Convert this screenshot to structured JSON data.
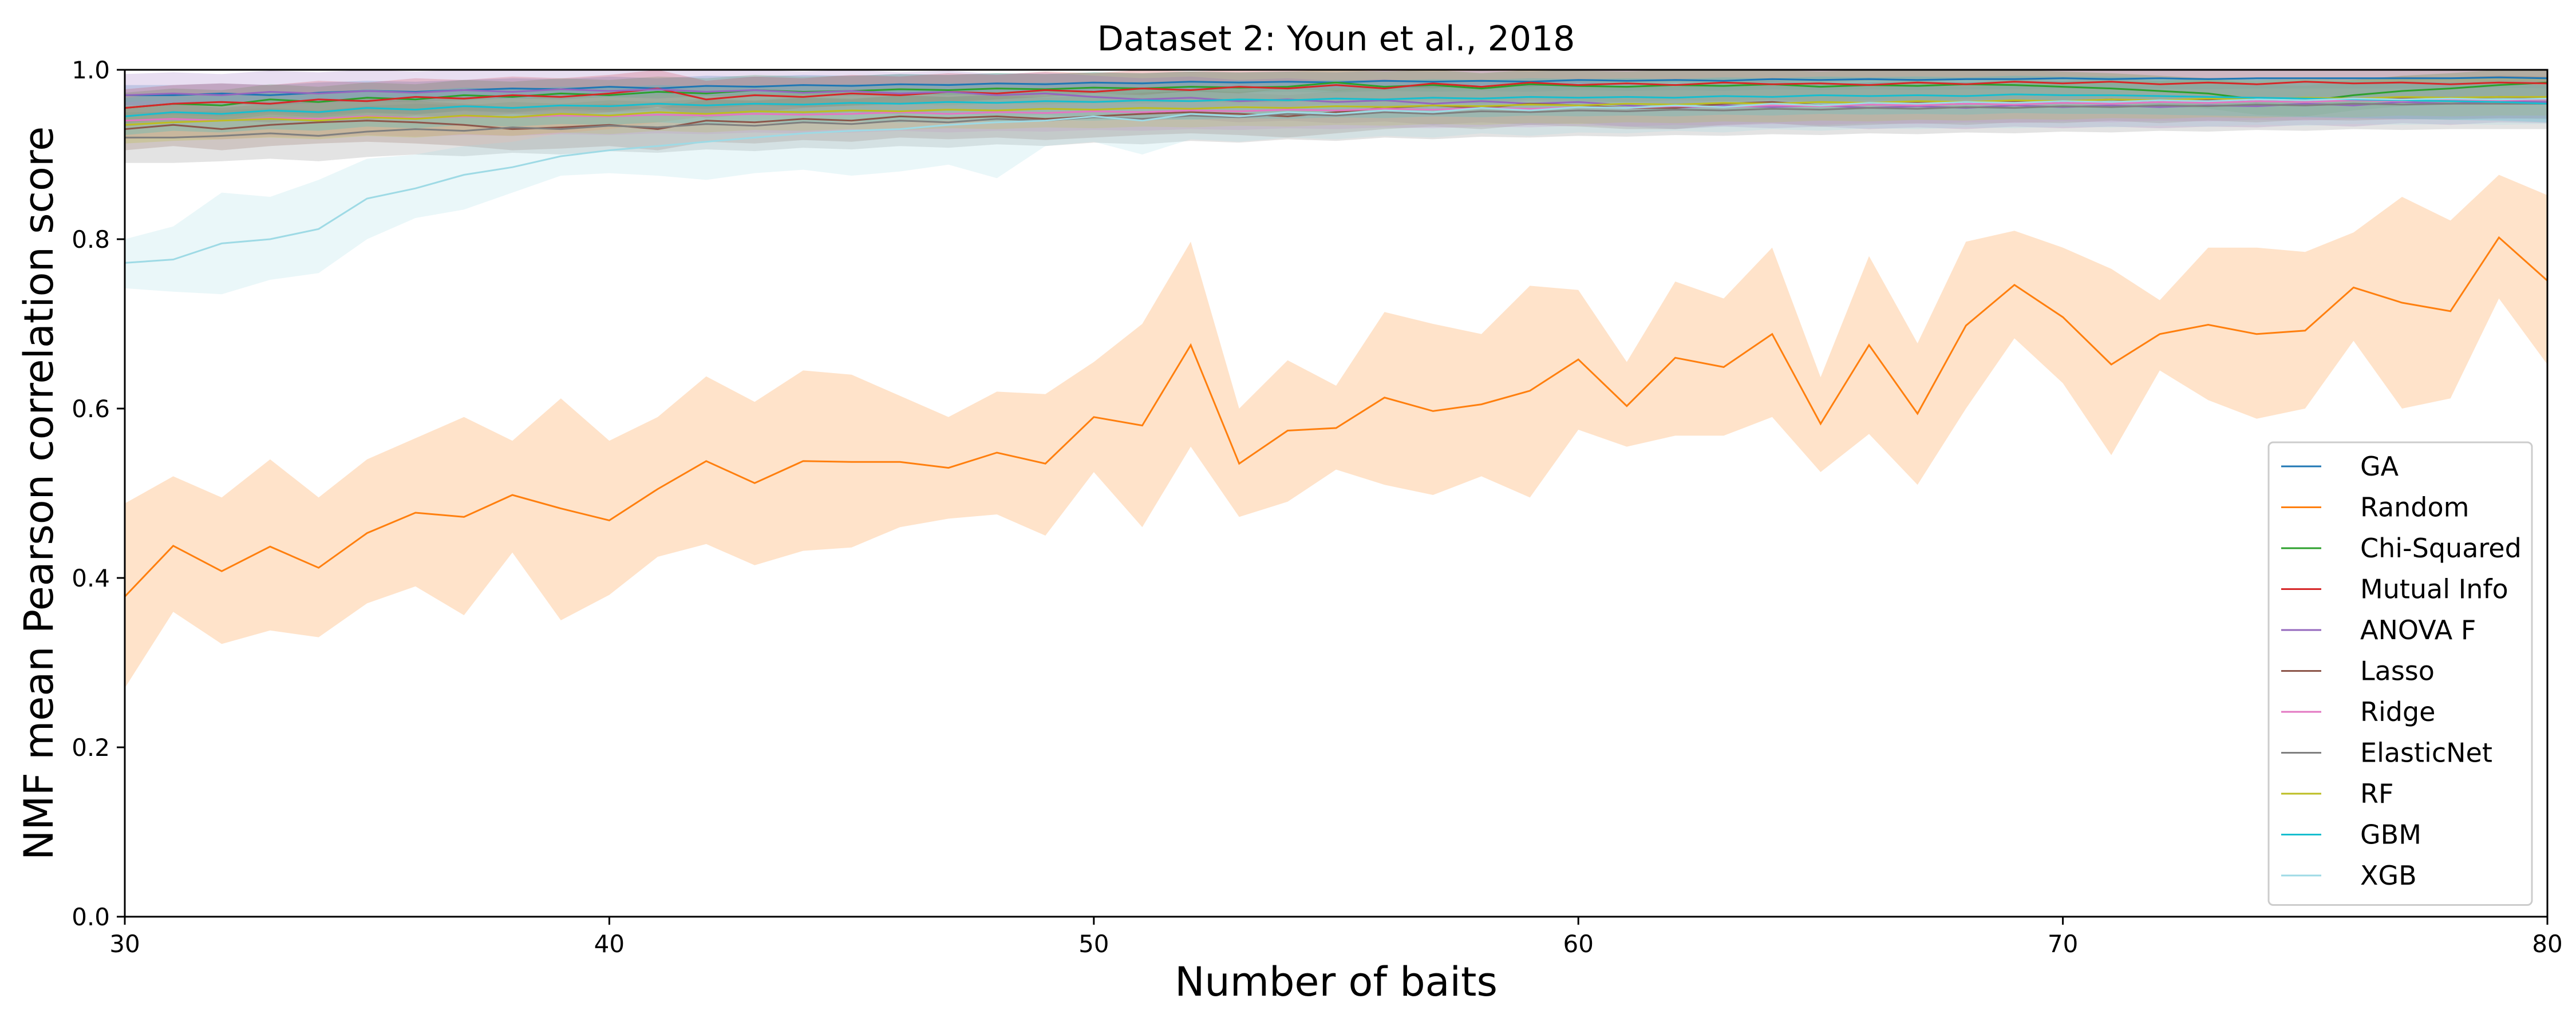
{
  "chart_data": {
    "type": "line",
    "title": "Dataset 2: Youn et al., 2018",
    "xlabel": "Number of baits",
    "ylabel": "NMF mean Pearson correlation score",
    "xlim": [
      30,
      80
    ],
    "ylim": [
      0.0,
      1.0
    ],
    "xticks": [
      "30",
      "40",
      "50",
      "60",
      "70",
      "80"
    ],
    "yticks": [
      "0.0",
      "0.2",
      "0.4",
      "0.6",
      "0.8",
      "1.0"
    ],
    "legend_position": "lower-right",
    "grid": false,
    "x": [
      30,
      31,
      32,
      33,
      34,
      35,
      36,
      37,
      38,
      39,
      40,
      41,
      42,
      43,
      44,
      45,
      46,
      47,
      48,
      49,
      50,
      51,
      52,
      53,
      54,
      55,
      56,
      57,
      58,
      59,
      60,
      61,
      62,
      63,
      64,
      65,
      66,
      67,
      68,
      69,
      70,
      71,
      72,
      73,
      74,
      75,
      76,
      77,
      78,
      79,
      80
    ],
    "series": [
      {
        "name": "GA",
        "color": "#1f77b4",
        "values": [
          0.97,
          0.97,
          0.972,
          0.97,
          0.973,
          0.975,
          0.974,
          0.976,
          0.978,
          0.977,
          0.98,
          0.978,
          0.981,
          0.98,
          0.982,
          0.981,
          0.983,
          0.982,
          0.984,
          0.983,
          0.985,
          0.984,
          0.986,
          0.985,
          0.986,
          0.985,
          0.987,
          0.986,
          0.987,
          0.986,
          0.988,
          0.987,
          0.988,
          0.987,
          0.989,
          0.988,
          0.989,
          0.988,
          0.989,
          0.989,
          0.99,
          0.989,
          0.99,
          0.989,
          0.99,
          0.99,
          0.99,
          0.99,
          0.99,
          0.991,
          0.99
        ],
        "band": 0.012
      },
      {
        "name": "Random",
        "color": "#ff7f0e",
        "values": [
          0.378,
          0.438,
          0.408,
          0.437,
          0.412,
          0.453,
          0.477,
          0.472,
          0.498,
          0.482,
          0.468,
          0.505,
          0.538,
          0.512,
          0.538,
          0.537,
          0.537,
          0.53,
          0.548,
          0.535,
          0.59,
          0.58,
          0.675,
          0.535,
          0.574,
          0.577,
          0.613,
          0.597,
          0.605,
          0.621,
          0.658,
          0.603,
          0.66,
          0.649,
          0.688,
          0.582,
          0.675,
          0.594,
          0.698,
          0.746,
          0.708,
          0.652,
          0.688,
          0.699,
          0.688,
          0.692,
          0.743,
          0.725,
          0.715,
          0.802,
          0.751
        ],
        "lower": [
          0.27,
          0.36,
          0.322,
          0.338,
          0.33,
          0.37,
          0.39,
          0.356,
          0.43,
          0.35,
          0.38,
          0.425,
          0.44,
          0.415,
          0.432,
          0.436,
          0.46,
          0.47,
          0.475,
          0.45,
          0.525,
          0.46,
          0.555,
          0.472,
          0.49,
          0.528,
          0.51,
          0.498,
          0.52,
          0.495,
          0.575,
          0.555,
          0.568,
          0.568,
          0.59,
          0.525,
          0.57,
          0.51,
          0.6,
          0.683,
          0.63,
          0.545,
          0.645,
          0.61,
          0.588,
          0.6,
          0.68,
          0.6,
          0.612,
          0.73,
          0.652
        ],
        "upper": [
          0.488,
          0.52,
          0.495,
          0.54,
          0.495,
          0.54,
          0.565,
          0.59,
          0.562,
          0.612,
          0.562,
          0.59,
          0.638,
          0.608,
          0.645,
          0.64,
          0.615,
          0.59,
          0.62,
          0.617,
          0.655,
          0.7,
          0.797,
          0.6,
          0.657,
          0.627,
          0.714,
          0.7,
          0.688,
          0.745,
          0.74,
          0.655,
          0.75,
          0.73,
          0.79,
          0.637,
          0.78,
          0.677,
          0.797,
          0.81,
          0.79,
          0.765,
          0.728,
          0.79,
          0.79,
          0.785,
          0.808,
          0.85,
          0.822,
          0.876,
          0.852
        ]
      },
      {
        "name": "Chi-Squared",
        "color": "#2ca02c",
        "values": [
          0.955,
          0.96,
          0.958,
          0.965,
          0.962,
          0.967,
          0.965,
          0.97,
          0.968,
          0.972,
          0.97,
          0.974,
          0.972,
          0.976,
          0.974,
          0.975,
          0.977,
          0.976,
          0.978,
          0.977,
          0.979,
          0.978,
          0.98,
          0.979,
          0.98,
          0.985,
          0.98,
          0.982,
          0.978,
          0.983,
          0.981,
          0.98,
          0.982,
          0.981,
          0.983,
          0.98,
          0.982,
          0.981,
          0.983,
          0.982,
          0.98,
          0.978,
          0.975,
          0.972,
          0.965,
          0.963,
          0.97,
          0.975,
          0.978,
          0.982,
          0.985
        ],
        "band": 0.018
      },
      {
        "name": "Mutual Info",
        "color": "#d62728",
        "values": [
          0.955,
          0.96,
          0.962,
          0.96,
          0.965,
          0.963,
          0.968,
          0.966,
          0.97,
          0.968,
          0.972,
          0.978,
          0.965,
          0.97,
          0.968,
          0.972,
          0.97,
          0.974,
          0.972,
          0.976,
          0.974,
          0.978,
          0.976,
          0.98,
          0.978,
          0.982,
          0.978,
          0.984,
          0.98,
          0.985,
          0.982,
          0.984,
          0.982,
          0.985,
          0.983,
          0.984,
          0.982,
          0.985,
          0.983,
          0.986,
          0.984,
          0.986,
          0.983,
          0.985,
          0.983,
          0.986,
          0.984,
          0.985,
          0.983,
          0.985,
          0.984
        ],
        "band": 0.022
      },
      {
        "name": "ANOVA F",
        "color": "#9467bd",
        "values": [
          0.97,
          0.972,
          0.97,
          0.974,
          0.972,
          0.975,
          0.973,
          0.976,
          0.974,
          0.977,
          0.975,
          0.977,
          0.974,
          0.976,
          0.973,
          0.975,
          0.972,
          0.974,
          0.97,
          0.972,
          0.968,
          0.965,
          0.967,
          0.963,
          0.965,
          0.962,
          0.964,
          0.96,
          0.963,
          0.96,
          0.962,
          0.958,
          0.955,
          0.958,
          0.956,
          0.958,
          0.955,
          0.957,
          0.955,
          0.958,
          0.956,
          0.958,
          0.956,
          0.958,
          0.957,
          0.96,
          0.958,
          0.962,
          0.96,
          0.963,
          0.962
        ],
        "band": 0.025
      },
      {
        "name": "Lasso",
        "color": "#8c564b",
        "values": [
          0.93,
          0.935,
          0.93,
          0.935,
          0.938,
          0.94,
          0.938,
          0.935,
          0.93,
          0.932,
          0.935,
          0.93,
          0.94,
          0.938,
          0.942,
          0.94,
          0.945,
          0.943,
          0.945,
          0.942,
          0.945,
          0.948,
          0.95,
          0.948,
          0.945,
          0.95,
          0.955,
          0.958,
          0.955,
          0.96,
          0.958,
          0.955,
          0.955,
          0.96,
          0.962,
          0.958,
          0.96,
          0.962,
          0.96,
          0.963,
          0.962,
          0.965,
          0.962,
          0.965,
          0.963,
          0.966,
          0.965,
          0.967,
          0.966,
          0.968,
          0.967
        ],
        "band": 0.025
      },
      {
        "name": "Ridge",
        "color": "#e377c2",
        "values": [
          0.94,
          0.942,
          0.94,
          0.943,
          0.942,
          0.945,
          0.943,
          0.945,
          0.944,
          0.946,
          0.945,
          0.947,
          0.946,
          0.948,
          0.947,
          0.948,
          0.95,
          0.948,
          0.95,
          0.949,
          0.951,
          0.95,
          0.952,
          0.951,
          0.953,
          0.952,
          0.954,
          0.953,
          0.955,
          0.954,
          0.956,
          0.955,
          0.957,
          0.956,
          0.958,
          0.957,
          0.959,
          0.958,
          0.96,
          0.959,
          0.961,
          0.96,
          0.962,
          0.961,
          0.963,
          0.962,
          0.964,
          0.963,
          0.965,
          0.964,
          0.965
        ],
        "band": 0.022
      },
      {
        "name": "ElasticNet",
        "color": "#7f7f7f",
        "values": [
          0.92,
          0.92,
          0.922,
          0.925,
          0.922,
          0.927,
          0.93,
          0.928,
          0.932,
          0.93,
          0.934,
          0.932,
          0.936,
          0.934,
          0.938,
          0.936,
          0.94,
          0.938,
          0.942,
          0.94,
          0.944,
          0.942,
          0.946,
          0.944,
          0.948,
          0.946,
          0.95,
          0.948,
          0.951,
          0.95,
          0.952,
          0.951,
          0.953,
          0.952,
          0.954,
          0.953,
          0.955,
          0.954,
          0.956,
          0.955,
          0.957,
          0.956,
          0.958,
          0.957,
          0.959,
          0.958,
          0.96,
          0.959,
          0.96,
          0.96,
          0.96
        ],
        "band": 0.03
      },
      {
        "name": "RF",
        "color": "#bcbd22",
        "values": [
          0.935,
          0.938,
          0.94,
          0.942,
          0.94,
          0.944,
          0.942,
          0.946,
          0.944,
          0.948,
          0.946,
          0.95,
          0.948,
          0.951,
          0.95,
          0.952,
          0.951,
          0.953,
          0.952,
          0.954,
          0.953,
          0.955,
          0.954,
          0.956,
          0.955,
          0.957,
          0.956,
          0.958,
          0.957,
          0.959,
          0.958,
          0.96,
          0.959,
          0.961,
          0.96,
          0.962,
          0.961,
          0.963,
          0.962,
          0.964,
          0.963,
          0.965,
          0.964,
          0.966,
          0.965,
          0.967,
          0.966,
          0.968,
          0.967,
          0.968,
          0.968
        ],
        "band": 0.022
      },
      {
        "name": "GBM",
        "color": "#17becf",
        "values": [
          0.945,
          0.95,
          0.948,
          0.952,
          0.95,
          0.955,
          0.953,
          0.957,
          0.955,
          0.958,
          0.957,
          0.96,
          0.958,
          0.96,
          0.959,
          0.961,
          0.96,
          0.962,
          0.961,
          0.963,
          0.962,
          0.964,
          0.963,
          0.965,
          0.964,
          0.966,
          0.965,
          0.967,
          0.966,
          0.968,
          0.967,
          0.968,
          0.967,
          0.969,
          0.968,
          0.97,
          0.969,
          0.97,
          0.969,
          0.971,
          0.97,
          0.97,
          0.969,
          0.968,
          0.967,
          0.966,
          0.965,
          0.964,
          0.963,
          0.962,
          0.96
        ],
        "band": 0.022
      },
      {
        "name": "XGB",
        "color": "#9edae5",
        "values": [
          0.772,
          0.776,
          0.795,
          0.8,
          0.812,
          0.848,
          0.86,
          0.876,
          0.885,
          0.898,
          0.905,
          0.91,
          0.915,
          0.92,
          0.925,
          0.928,
          0.93,
          0.935,
          0.938,
          0.94,
          0.945,
          0.94,
          0.948,
          0.945,
          0.95,
          0.948,
          0.952,
          0.95,
          0.955,
          0.952,
          0.956,
          0.955,
          0.958,
          0.956,
          0.96,
          0.958,
          0.961,
          0.96,
          0.962,
          0.961,
          0.963,
          0.962,
          0.964,
          0.963,
          0.965,
          0.964,
          0.966,
          0.965,
          0.966,
          0.965,
          0.966
        ],
        "lower": [
          0.742,
          0.738,
          0.735,
          0.752,
          0.76,
          0.8,
          0.825,
          0.835,
          0.855,
          0.875,
          0.878,
          0.875,
          0.87,
          0.878,
          0.882,
          0.875,
          0.88,
          0.888,
          0.872,
          0.91,
          0.915,
          0.9,
          0.918,
          0.915,
          0.92,
          0.918,
          0.922,
          0.92,
          0.925,
          0.922,
          0.926,
          0.925,
          0.928,
          0.926,
          0.93,
          0.928,
          0.931,
          0.93,
          0.932,
          0.931,
          0.933,
          0.932,
          0.934,
          0.933,
          0.935,
          0.934,
          0.936,
          0.935,
          0.936,
          0.935,
          0.936
        ],
        "upper": [
          0.8,
          0.815,
          0.855,
          0.85,
          0.87,
          0.895,
          0.9,
          0.91,
          0.915,
          0.925,
          0.93,
          0.938,
          0.945,
          0.95,
          0.955,
          0.958,
          0.96,
          0.962,
          0.965,
          0.968,
          0.972,
          0.97,
          0.975,
          0.972,
          0.978,
          0.975,
          0.98,
          0.978,
          0.982,
          0.98,
          0.984,
          0.982,
          0.985,
          0.984,
          0.986,
          0.985,
          0.987,
          0.986,
          0.988,
          0.987,
          0.989,
          0.988,
          0.99,
          0.989,
          0.99,
          0.99,
          0.99,
          0.99,
          0.99,
          0.99,
          0.99
        ]
      }
    ]
  }
}
